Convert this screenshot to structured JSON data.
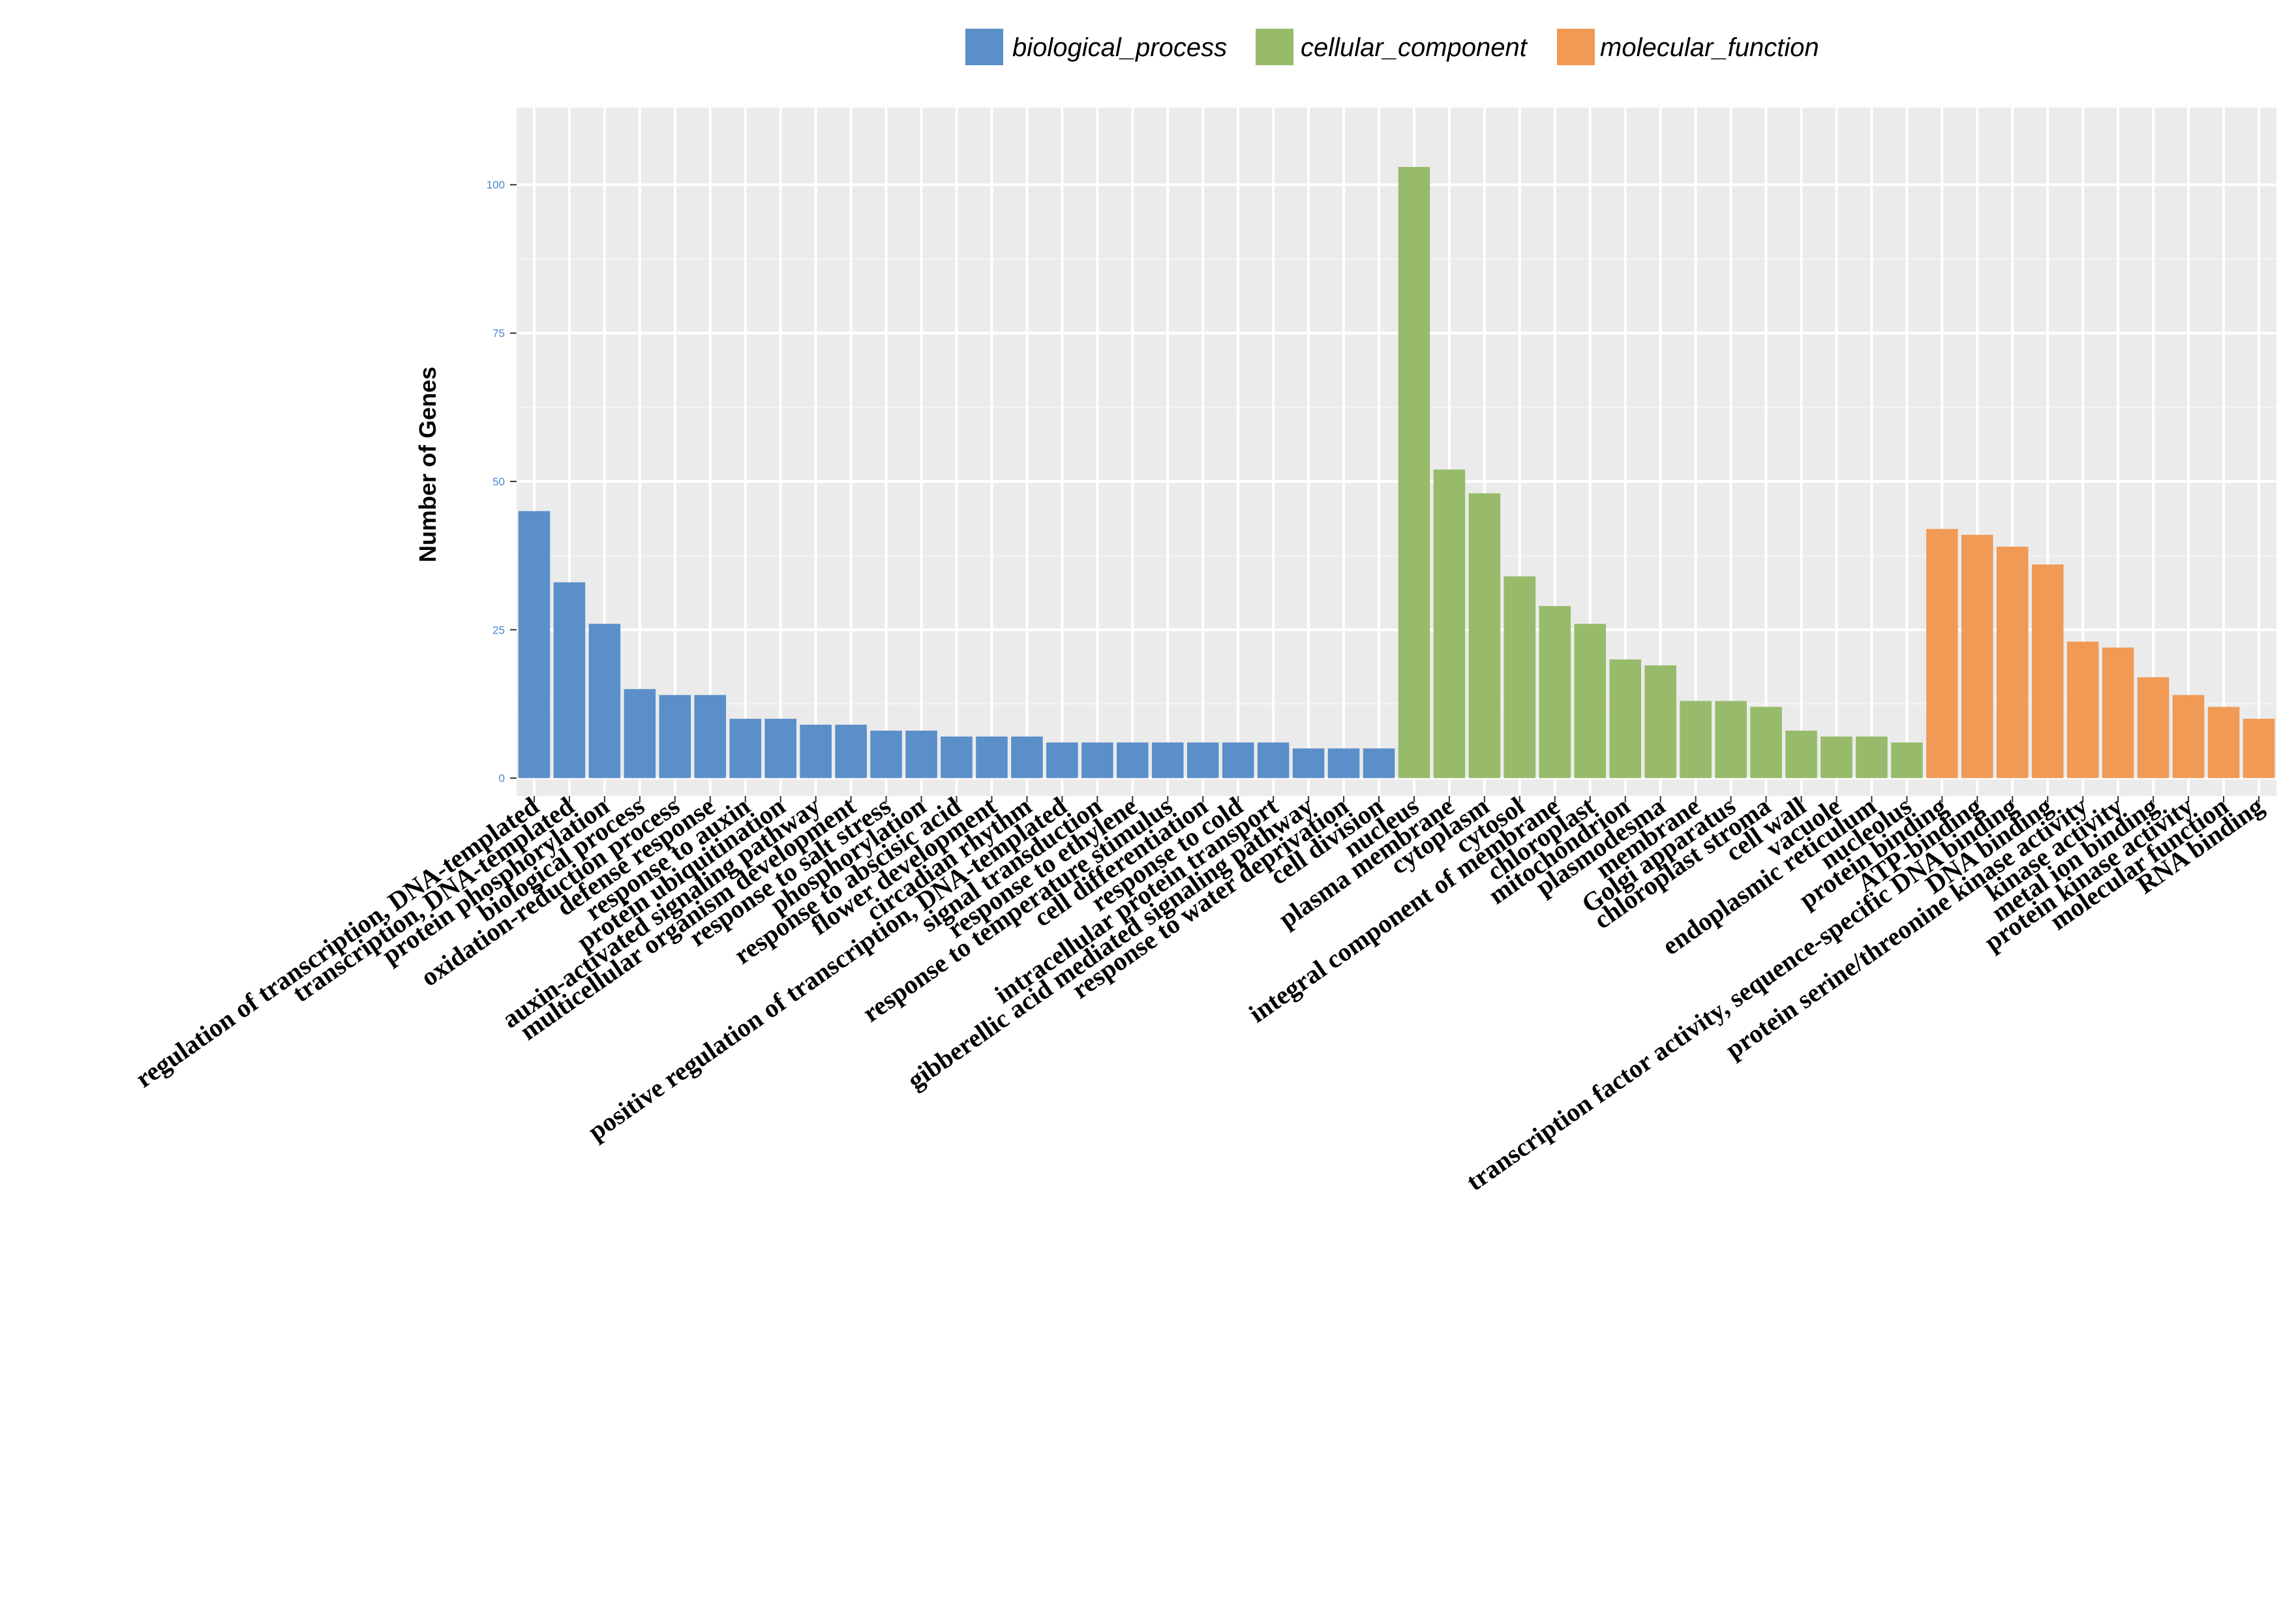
{
  "chart_data": {
    "type": "bar",
    "title": "",
    "xlabel": "",
    "ylabel": "Number  of Genes",
    "ylim": [
      -3,
      113
    ],
    "yticks": [
      0,
      25,
      50,
      75,
      100
    ],
    "grid": true,
    "legend_position": "top",
    "legend": [
      {
        "name": "biological_process",
        "color": "#5b8fc9"
      },
      {
        "name": "cellular_component",
        "color": "#97bb6b"
      },
      {
        "name": "molecular_function",
        "color": "#f09a55"
      }
    ],
    "tick_color": "#4a86c8",
    "bars": [
      {
        "label": "regulation of transcription, DNA-templated",
        "value": 45,
        "group": "biological_process"
      },
      {
        "label": "transcription, DNA-templated",
        "value": 33,
        "group": "biological_process"
      },
      {
        "label": "protein phosphorylation",
        "value": 26,
        "group": "biological_process"
      },
      {
        "label": "biological process",
        "value": 15,
        "group": "biological_process"
      },
      {
        "label": "oxidation-reduction process",
        "value": 14,
        "group": "biological_process"
      },
      {
        "label": "defense response",
        "value": 14,
        "group": "biological_process"
      },
      {
        "label": "response to auxin",
        "value": 10,
        "group": "biological_process"
      },
      {
        "label": "protein ubiquitination",
        "value": 10,
        "group": "biological_process"
      },
      {
        "label": "auxin-activated signaling pathway",
        "value": 9,
        "group": "biological_process"
      },
      {
        "label": "multicellular organism development",
        "value": 9,
        "group": "biological_process"
      },
      {
        "label": "response to salt stress",
        "value": 8,
        "group": "biological_process"
      },
      {
        "label": "phosphorylation",
        "value": 8,
        "group": "biological_process"
      },
      {
        "label": "response to abscisic acid",
        "value": 7,
        "group": "biological_process"
      },
      {
        "label": "flower development",
        "value": 7,
        "group": "biological_process"
      },
      {
        "label": "circadian rhythm",
        "value": 7,
        "group": "biological_process"
      },
      {
        "label": "positive regulation of transcription, DNA-templated",
        "value": 6,
        "group": "biological_process"
      },
      {
        "label": "signal transduction",
        "value": 6,
        "group": "biological_process"
      },
      {
        "label": "response to ethylene",
        "value": 6,
        "group": "biological_process"
      },
      {
        "label": "response to temperature stimulus",
        "value": 6,
        "group": "biological_process"
      },
      {
        "label": "cell differentiation",
        "value": 6,
        "group": "biological_process"
      },
      {
        "label": "response to cold",
        "value": 6,
        "group": "biological_process"
      },
      {
        "label": "intracellular protein transport",
        "value": 6,
        "group": "biological_process"
      },
      {
        "label": "gibberellic acid mediated signaling pathway",
        "value": 5,
        "group": "biological_process"
      },
      {
        "label": "response to water deprivation",
        "value": 5,
        "group": "biological_process"
      },
      {
        "label": "cell division",
        "value": 5,
        "group": "biological_process"
      },
      {
        "label": "nucleus",
        "value": 103,
        "group": "cellular_component"
      },
      {
        "label": "plasma membrane",
        "value": 52,
        "group": "cellular_component"
      },
      {
        "label": "cytoplasm",
        "value": 48,
        "group": "cellular_component"
      },
      {
        "label": "cytosol",
        "value": 34,
        "group": "cellular_component"
      },
      {
        "label": "integral component of membrane",
        "value": 29,
        "group": "cellular_component"
      },
      {
        "label": "chloroplast",
        "value": 26,
        "group": "cellular_component"
      },
      {
        "label": "mitochondrion",
        "value": 20,
        "group": "cellular_component"
      },
      {
        "label": "plasmodesma",
        "value": 19,
        "group": "cellular_component"
      },
      {
        "label": "membrane",
        "value": 13,
        "group": "cellular_component"
      },
      {
        "label": "Golgi apparatus",
        "value": 13,
        "group": "cellular_component"
      },
      {
        "label": "chloroplast stroma",
        "value": 12,
        "group": "cellular_component"
      },
      {
        "label": "cell wall",
        "value": 8,
        "group": "cellular_component"
      },
      {
        "label": "vacuole",
        "value": 7,
        "group": "cellular_component"
      },
      {
        "label": "endoplasmic reticulum",
        "value": 7,
        "group": "cellular_component"
      },
      {
        "label": "nucleolus",
        "value": 6,
        "group": "cellular_component"
      },
      {
        "label": "protein binding",
        "value": 42,
        "group": "molecular_function"
      },
      {
        "label": "ATP-binding",
        "value": 41,
        "group": "molecular_function"
      },
      {
        "label": "transcription factor activity, sequence-specific DNA binding",
        "value": 39,
        "group": "molecular_function"
      },
      {
        "label": "DNA binding",
        "value": 36,
        "group": "molecular_function"
      },
      {
        "label": "protein serine/threonine kinase activity",
        "value": 23,
        "group": "molecular_function"
      },
      {
        "label": "kinase activity",
        "value": 22,
        "group": "molecular_function"
      },
      {
        "label": "metal ion binding",
        "value": 17,
        "group": "molecular_function"
      },
      {
        "label": "protein kinase activity",
        "value": 14,
        "group": "molecular_function"
      },
      {
        "label": "molecular function",
        "value": 12,
        "group": "molecular_function"
      },
      {
        "label": "RNA binding",
        "value": 10,
        "group": "molecular_function"
      }
    ]
  }
}
